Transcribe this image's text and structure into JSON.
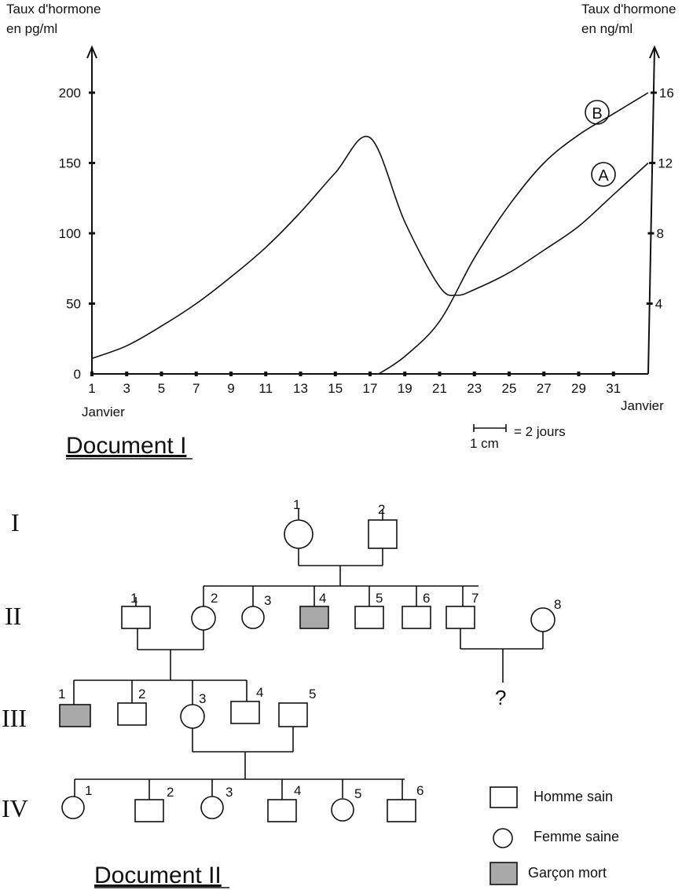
{
  "doc1": {
    "title": "Document I",
    "left_axis_label_line1": "Taux d'hormone",
    "left_axis_label_line2": "en pg/ml",
    "right_axis_label_line1": "Taux d'hormone",
    "right_axis_label_line2": "en ng/ml",
    "x_start_label": "Janvier",
    "x_end_label": "Janvier",
    "scale_note_left": "1 cm",
    "scale_note_right": "= 2 jours",
    "curve_a_label": "A",
    "curve_b_label": "B"
  },
  "doc2": {
    "title": "Document II",
    "generation_labels": [
      "I",
      "II",
      "III",
      "IV"
    ],
    "unknown_child_label": "?",
    "legend": {
      "male_healthy": "Homme sain",
      "female_healthy": "Femme saine",
      "dead_boy": "Garçon mort"
    },
    "individuals": [
      {
        "gen": "I",
        "num": "1",
        "sex": "female",
        "status": "healthy"
      },
      {
        "gen": "I",
        "num": "2",
        "sex": "male",
        "status": "healthy"
      },
      {
        "gen": "II",
        "num": "1",
        "sex": "male",
        "status": "healthy"
      },
      {
        "gen": "II",
        "num": "2",
        "sex": "female",
        "status": "healthy"
      },
      {
        "gen": "II",
        "num": "3",
        "sex": "female",
        "status": "healthy"
      },
      {
        "gen": "II",
        "num": "4",
        "sex": "male",
        "status": "dead"
      },
      {
        "gen": "II",
        "num": "5",
        "sex": "male",
        "status": "healthy"
      },
      {
        "gen": "II",
        "num": "6",
        "sex": "male",
        "status": "healthy"
      },
      {
        "gen": "II",
        "num": "7",
        "sex": "male",
        "status": "healthy"
      },
      {
        "gen": "II",
        "num": "8",
        "sex": "female",
        "status": "healthy"
      },
      {
        "gen": "III",
        "num": "1",
        "sex": "male",
        "status": "dead"
      },
      {
        "gen": "III",
        "num": "2",
        "sex": "male",
        "status": "healthy"
      },
      {
        "gen": "III",
        "num": "3",
        "sex": "female",
        "status": "healthy"
      },
      {
        "gen": "III",
        "num": "4",
        "sex": "male",
        "status": "healthy"
      },
      {
        "gen": "III",
        "num": "5",
        "sex": "male",
        "status": "healthy"
      },
      {
        "gen": "IV",
        "num": "1",
        "sex": "female",
        "status": "healthy"
      },
      {
        "gen": "IV",
        "num": "2",
        "sex": "male",
        "status": "healthy"
      },
      {
        "gen": "IV",
        "num": "3",
        "sex": "female",
        "status": "healthy"
      },
      {
        "gen": "IV",
        "num": "4",
        "sex": "male",
        "status": "healthy"
      },
      {
        "gen": "IV",
        "num": "5",
        "sex": "female",
        "status": "healthy"
      },
      {
        "gen": "IV",
        "num": "6",
        "sex": "male",
        "status": "healthy"
      }
    ],
    "colors": {
      "dead_fill": "#a9a9a9",
      "line": "#111111"
    }
  },
  "chart_data": {
    "type": "line",
    "xlabel": "",
    "x_ticks": [
      "1",
      "3",
      "5",
      "7",
      "9",
      "11",
      "13",
      "15",
      "17",
      "19",
      "21",
      "23",
      "25",
      "27",
      "29",
      "31"
    ],
    "xlim": [
      1,
      33
    ],
    "y_left": {
      "label": "Taux d'hormone en pg/ml",
      "ticks": [
        "0",
        "50",
        "100",
        "150",
        "200"
      ],
      "ylim": [
        0,
        200
      ]
    },
    "y_right": {
      "label": "Taux d'hormone en ng/ml",
      "ticks": [
        "4",
        "8",
        "12",
        "16"
      ],
      "ylim": [
        0,
        16
      ]
    },
    "series": [
      {
        "name": "A",
        "axis": "left_then_right",
        "points_left_pg_ml": [
          [
            1,
            11
          ],
          [
            3,
            20
          ],
          [
            5,
            34
          ],
          [
            7,
            50
          ],
          [
            9,
            69
          ],
          [
            11,
            90
          ],
          [
            13,
            115
          ],
          [
            15,
            143
          ],
          [
            17,
            168
          ],
          [
            19,
            108
          ],
          [
            21,
            62
          ],
          [
            22,
            56
          ],
          [
            23,
            60
          ],
          [
            25,
            72
          ],
          [
            27,
            88
          ],
          [
            29,
            105
          ]
        ],
        "points_right_ng_ml": [
          [
            29,
            8.4
          ],
          [
            31,
            10.2
          ],
          [
            33,
            12
          ]
        ]
      },
      {
        "name": "B",
        "axis": "right",
        "points_right_ng_ml": [
          [
            17.5,
            0
          ],
          [
            19,
            1
          ],
          [
            21,
            3
          ],
          [
            23,
            6.6
          ],
          [
            25,
            9.6
          ],
          [
            27,
            12
          ],
          [
            29,
            13.6
          ],
          [
            31,
            14.8
          ],
          [
            33,
            16
          ]
        ]
      }
    ]
  }
}
